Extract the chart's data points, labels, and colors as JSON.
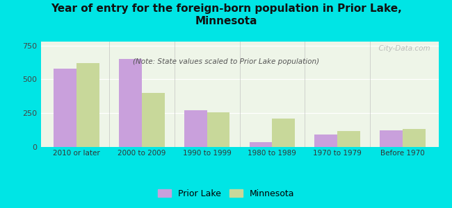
{
  "categories": [
    "2010 or later",
    "2000 to 2009",
    "1990 to 1999",
    "1980 to 1989",
    "1970 to 1979",
    "Before 1970"
  ],
  "prior_lake": [
    580,
    650,
    270,
    35,
    90,
    120
  ],
  "minnesota": [
    620,
    400,
    255,
    210,
    115,
    130
  ],
  "prior_lake_color": "#c9a0dc",
  "minnesota_color": "#c8d89a",
  "title": "Year of entry for the foreign-born population in Prior Lake,\nMinnesota",
  "subtitle": "(Note: State values scaled to Prior Lake population)",
  "legend_prior_lake": "Prior Lake",
  "legend_minnesota": "Minnesota",
  "ylim": [
    0,
    780
  ],
  "yticks": [
    0,
    250,
    500,
    750
  ],
  "background_color": "#00e5e5",
  "bar_width": 0.35,
  "watermark": "  City-Data.com"
}
